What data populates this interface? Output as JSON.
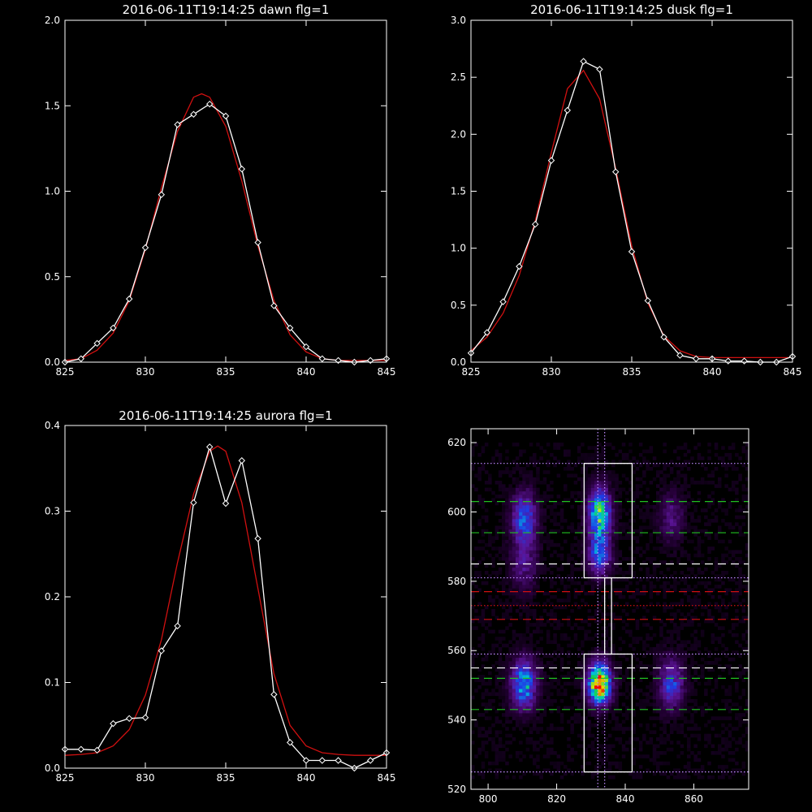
{
  "chart_data": [
    {
      "type": "line",
      "title": "2016-06-11T19:14:25 dawn flg=1",
      "xlim": [
        825,
        845
      ],
      "ylim": [
        0,
        2.0
      ],
      "xticks": [
        "825",
        "830",
        "835",
        "840",
        "845"
      ],
      "yticks": [
        "0.0",
        "0.5",
        "1.0",
        "1.5",
        "2.0"
      ],
      "series": [
        {
          "color": "#ffffff",
          "marker": "diamond",
          "x": [
            825,
            826,
            827,
            828,
            829,
            830,
            831,
            832,
            833,
            834,
            835,
            836,
            837,
            838,
            839,
            840,
            841,
            842,
            843,
            844,
            845
          ],
          "y": [
            0.0,
            0.02,
            0.11,
            0.2,
            0.37,
            0.67,
            0.98,
            1.39,
            1.45,
            1.51,
            1.44,
            1.13,
            0.7,
            0.33,
            0.2,
            0.09,
            0.02,
            0.01,
            0.0,
            0.01,
            0.02
          ]
        },
        {
          "color": "#d01010",
          "marker": "none",
          "x": [
            825,
            826,
            827,
            828,
            829,
            830,
            831,
            832,
            833,
            833.5,
            834,
            835,
            836,
            837,
            838,
            839,
            840,
            841,
            842,
            843,
            844,
            845
          ],
          "y": [
            0.01,
            0.02,
            0.07,
            0.17,
            0.36,
            0.66,
            1.02,
            1.35,
            1.55,
            1.57,
            1.55,
            1.38,
            1.06,
            0.68,
            0.36,
            0.16,
            0.06,
            0.02,
            0.01,
            0.01,
            0.01,
            0.01
          ]
        }
      ]
    },
    {
      "type": "line",
      "title": "2016-06-11T19:14:25 dusk flg=1",
      "xlim": [
        825,
        845
      ],
      "ylim": [
        0,
        3.0
      ],
      "xticks": [
        "825",
        "830",
        "835",
        "840",
        "845"
      ],
      "yticks": [
        "0.0",
        "0.5",
        "1.0",
        "1.5",
        "2.0",
        "2.5",
        "3.0"
      ],
      "series": [
        {
          "color": "#ffffff",
          "marker": "diamond",
          "x": [
            825,
            826,
            827,
            828,
            829,
            830,
            831,
            832,
            833,
            834,
            835,
            836,
            837,
            838,
            839,
            840,
            841,
            842,
            843,
            844,
            845
          ],
          "y": [
            0.08,
            0.26,
            0.53,
            0.84,
            1.21,
            1.77,
            2.21,
            2.64,
            2.57,
            1.67,
            0.97,
            0.54,
            0.22,
            0.06,
            0.03,
            0.03,
            0.01,
            0.01,
            0.0,
            0.0,
            0.05
          ]
        },
        {
          "color": "#d01010",
          "marker": "none",
          "x": [
            825,
            826,
            827,
            828,
            829,
            830,
            831,
            832,
            833,
            834,
            835,
            836,
            837,
            838,
            839,
            840,
            841,
            842,
            843,
            844,
            845
          ],
          "y": [
            0.1,
            0.22,
            0.43,
            0.76,
            1.24,
            1.84,
            2.4,
            2.56,
            2.31,
            1.7,
            1.02,
            0.52,
            0.23,
            0.1,
            0.05,
            0.04,
            0.04,
            0.04,
            0.04,
            0.04,
            0.04
          ]
        }
      ]
    },
    {
      "type": "line",
      "title": "2016-06-11T19:14:25 aurora flg=1",
      "xlim": [
        825,
        845
      ],
      "ylim": [
        0,
        0.4
      ],
      "xticks": [
        "825",
        "830",
        "835",
        "840",
        "845"
      ],
      "yticks": [
        "0.0",
        "0.1",
        "0.2",
        "0.3",
        "0.4"
      ],
      "series": [
        {
          "color": "#ffffff",
          "marker": "diamond",
          "x": [
            825,
            826,
            827,
            828,
            829,
            830,
            831,
            832,
            833,
            834,
            835,
            836,
            837,
            838,
            839,
            840,
            841,
            842,
            843,
            844,
            845
          ],
          "y": [
            0.022,
            0.022,
            0.021,
            0.052,
            0.058,
            0.059,
            0.137,
            0.166,
            0.31,
            0.375,
            0.309,
            0.359,
            0.268,
            0.086,
            0.03,
            0.009,
            0.009,
            0.009,
            0.0,
            0.009,
            0.018
          ]
        },
        {
          "color": "#d01010",
          "marker": "none",
          "x": [
            825,
            826,
            827,
            828,
            829,
            830,
            831,
            832,
            833,
            834,
            834.5,
            835,
            836,
            837,
            838,
            839,
            840,
            841,
            842,
            843,
            844,
            845
          ],
          "y": [
            0.015,
            0.016,
            0.018,
            0.026,
            0.045,
            0.085,
            0.15,
            0.24,
            0.32,
            0.37,
            0.376,
            0.37,
            0.31,
            0.21,
            0.11,
            0.05,
            0.026,
            0.018,
            0.016,
            0.015,
            0.015,
            0.015
          ]
        }
      ]
    },
    {
      "type": "heatmap",
      "title": "",
      "xlim": [
        795,
        876
      ],
      "ylim": [
        520,
        624
      ],
      "xticks": [
        "800",
        "820",
        "840",
        "860"
      ],
      "yticks": [
        "520",
        "540",
        "560",
        "580",
        "600",
        "620"
      ],
      "blobs": [
        {
          "x": 810,
          "y": 550,
          "sx": 2.6,
          "sy": 5,
          "amp": 0.55
        },
        {
          "x": 810,
          "y": 598,
          "sx": 2.6,
          "sy": 5,
          "amp": 0.42
        },
        {
          "x": 810,
          "y": 585,
          "sx": 2.6,
          "sy": 6,
          "amp": 0.22
        },
        {
          "x": 832,
          "y": 550,
          "sx": 2.3,
          "sy": 4,
          "amp": 0.95
        },
        {
          "x": 832,
          "y": 599,
          "sx": 2.3,
          "sy": 5,
          "amp": 0.68
        },
        {
          "x": 832,
          "y": 587,
          "sx": 2.3,
          "sy": 4,
          "amp": 0.45
        },
        {
          "x": 853,
          "y": 550,
          "sx": 2.6,
          "sy": 5,
          "amp": 0.38
        },
        {
          "x": 853,
          "y": 598,
          "sx": 2.6,
          "sy": 5,
          "amp": 0.2
        }
      ],
      "boxes": [
        {
          "x": [
            828,
            842
          ],
          "y": [
            525,
            559
          ]
        },
        {
          "x": [
            828,
            842
          ],
          "y": [
            581,
            614
          ]
        },
        {
          "x": [
            834,
            836
          ],
          "y": [
            559,
            581
          ]
        }
      ],
      "hlines": [
        {
          "y": 614,
          "color": "#c08cff",
          "style": "dotted"
        },
        {
          "y": 603,
          "color": "#20c020",
          "style": "dashed"
        },
        {
          "y": 594,
          "color": "#20c020",
          "style": "dashed"
        },
        {
          "y": 585,
          "color": "#ffffff",
          "style": "dashed"
        },
        {
          "y": 581,
          "color": "#c08cff",
          "style": "dotted"
        },
        {
          "y": 577,
          "color": "#d01010",
          "style": "dashed"
        },
        {
          "y": 573,
          "color": "#d01010",
          "style": "dotted"
        },
        {
          "y": 569,
          "color": "#d01010",
          "style": "dashed"
        },
        {
          "y": 559,
          "color": "#c08cff",
          "style": "dotted"
        },
        {
          "y": 555,
          "color": "#ffffff",
          "style": "dashed"
        },
        {
          "y": 552,
          "color": "#20c020",
          "style": "dashed"
        },
        {
          "y": 543,
          "color": "#20c020",
          "style": "dashed"
        },
        {
          "y": 525,
          "color": "#c08cff",
          "style": "dotted"
        }
      ],
      "vlines": [
        {
          "x": 832,
          "color": "#c08cff",
          "style": "dotted"
        },
        {
          "x": 834,
          "color": "#c08cff",
          "style": "dotted"
        }
      ]
    }
  ]
}
